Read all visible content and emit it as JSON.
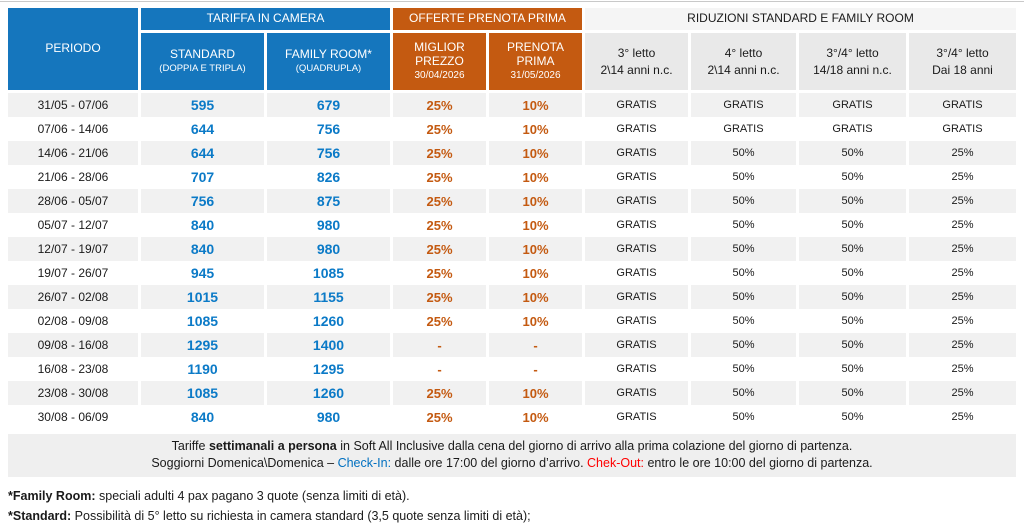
{
  "header": {
    "periodo": "PERIODO",
    "tariffa_group": "TARIFFA IN CAMERA",
    "offerte_group": "OFFERTE PRENOTA PRIMA",
    "riduzioni_group": "RIDUZIONI STANDARD E FAMILY ROOM",
    "cols": [
      {
        "title": "STANDARD",
        "sub": "(DOPPIA E TRIPLA)"
      },
      {
        "title": "FAMILY ROOM*",
        "sub": "(QUADRUPLA)"
      },
      {
        "title": "MIGLIOR PREZZO",
        "sub": "30/04/2026"
      },
      {
        "title": "PRENOTA PRIMA",
        "sub": "31/05/2026"
      },
      {
        "title": "3° letto",
        "sub": "2\\14 anni n.c."
      },
      {
        "title": "4° letto",
        "sub": "2\\14 anni n.c."
      },
      {
        "title": "3°/4° letto",
        "sub": "14/18 anni n.c."
      },
      {
        "title": "3°/4° letto",
        "sub": "Dai 18 anni"
      }
    ]
  },
  "table": {
    "rows": [
      {
        "p": "31/05 - 07/06",
        "std": "595",
        "fam": "679",
        "mp": "25%",
        "pp": "10%",
        "l3": "GRATIS",
        "l4": "GRATIS",
        "l34a": "GRATIS",
        "l34b": "GRATIS"
      },
      {
        "p": "07/06 - 14/06",
        "std": "644",
        "fam": "756",
        "mp": "25%",
        "pp": "10%",
        "l3": "GRATIS",
        "l4": "GRATIS",
        "l34a": "GRATIS",
        "l34b": "GRATIS"
      },
      {
        "p": "14/06 - 21/06",
        "std": "644",
        "fam": "756",
        "mp": "25%",
        "pp": "10%",
        "l3": "GRATIS",
        "l4": "50%",
        "l34a": "50%",
        "l34b": "25%"
      },
      {
        "p": "21/06 - 28/06",
        "std": "707",
        "fam": "826",
        "mp": "25%",
        "pp": "10%",
        "l3": "GRATIS",
        "l4": "50%",
        "l34a": "50%",
        "l34b": "25%"
      },
      {
        "p": "28/06 - 05/07",
        "std": "756",
        "fam": "875",
        "mp": "25%",
        "pp": "10%",
        "l3": "GRATIS",
        "l4": "50%",
        "l34a": "50%",
        "l34b": "25%"
      },
      {
        "p": "05/07 - 12/07",
        "std": "840",
        "fam": "980",
        "mp": "25%",
        "pp": "10%",
        "l3": "GRATIS",
        "l4": "50%",
        "l34a": "50%",
        "l34b": "25%"
      },
      {
        "p": "12/07 - 19/07",
        "std": "840",
        "fam": "980",
        "mp": "25%",
        "pp": "10%",
        "l3": "GRATIS",
        "l4": "50%",
        "l34a": "50%",
        "l34b": "25%"
      },
      {
        "p": "19/07 - 26/07",
        "std": "945",
        "fam": "1085",
        "mp": "25%",
        "pp": "10%",
        "l3": "GRATIS",
        "l4": "50%",
        "l34a": "50%",
        "l34b": "25%"
      },
      {
        "p": "26/07 - 02/08",
        "std": "1015",
        "fam": "1155",
        "mp": "25%",
        "pp": "10%",
        "l3": "GRATIS",
        "l4": "50%",
        "l34a": "50%",
        "l34b": "25%"
      },
      {
        "p": "02/08 - 09/08",
        "std": "1085",
        "fam": "1260",
        "mp": "25%",
        "pp": "10%",
        "l3": "GRATIS",
        "l4": "50%",
        "l34a": "50%",
        "l34b": "25%"
      },
      {
        "p": "09/08 - 16/08",
        "std": "1295",
        "fam": "1400",
        "mp": "-",
        "pp": "-",
        "l3": "GRATIS",
        "l4": "50%",
        "l34a": "50%",
        "l34b": "25%"
      },
      {
        "p": "16/08 - 23/08",
        "std": "1190",
        "fam": "1295",
        "mp": "-",
        "pp": "-",
        "l3": "GRATIS",
        "l4": "50%",
        "l34a": "50%",
        "l34b": "25%"
      },
      {
        "p": "23/08 - 30/08",
        "std": "1085",
        "fam": "1260",
        "mp": "25%",
        "pp": "10%",
        "l3": "GRATIS",
        "l4": "50%",
        "l34a": "50%",
        "l34b": "25%"
      },
      {
        "p": "30/08 - 06/09",
        "std": "840",
        "fam": "980",
        "mp": "25%",
        "pp": "10%",
        "l3": "GRATIS",
        "l4": "50%",
        "l34a": "50%",
        "l34b": "25%"
      }
    ]
  },
  "footer": {
    "line1": {
      "pre": "Tariffe ",
      "bold": "settimanali a persona",
      "post": " in Soft All Inclusive dalla cena del giorno di arrivo alla prima colazione del giorno di partenza."
    },
    "line2": {
      "pre": "Soggiorni Domenica\\Domenica – ",
      "checkin_label": "Check-In:",
      "mid": " dalle ore 17:00 del giorno d’arrivo. ",
      "checkout_label": "Chek-Out:",
      "post": " entro le ore 10:00 del giorno di partenza."
    }
  },
  "notes": {
    "family_room": {
      "label": "*Family Room:",
      "text": " speciali adulti 4 pax pagano 3 quote (senza limiti di età)."
    },
    "standard": {
      "label": "*Standard:",
      "text": " Possibilità di 5° letto su richiesta in camera standard (3,5 quote senza limiti di età);"
    }
  },
  "colors": {
    "header_blue": "#1576BD",
    "header_orange": "#C45A11",
    "price_blue": "#0B7AC7",
    "checkin_blue": "#0070C0",
    "checkout_red": "#FF0000"
  }
}
